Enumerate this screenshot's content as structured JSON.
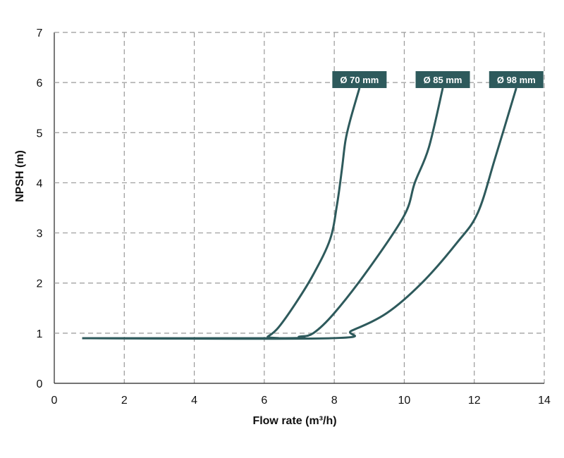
{
  "chart_data": {
    "type": "line",
    "xlabel": "Flow rate (m³/h)",
    "ylabel": "NPSH (m)",
    "xlim": [
      0,
      14
    ],
    "ylim": [
      0,
      7
    ],
    "xticks": [
      0,
      2,
      4,
      6,
      8,
      10,
      12,
      14
    ],
    "yticks": [
      0,
      1,
      2,
      3,
      4,
      5,
      6,
      7
    ],
    "grid": true,
    "grid_style": "dashed",
    "line_color": "#2e5a5c",
    "series": [
      {
        "name": "Ø 70 mm",
        "points": [
          [
            0.8,
            0.9
          ],
          [
            6.0,
            0.9
          ],
          [
            6.1,
            0.93
          ],
          [
            6.4,
            1.11
          ],
          [
            6.9,
            1.6
          ],
          [
            7.4,
            2.17
          ],
          [
            7.88,
            2.87
          ],
          [
            8.08,
            3.57
          ],
          [
            8.22,
            4.28
          ],
          [
            8.32,
            4.84
          ],
          [
            8.46,
            5.26
          ],
          [
            8.72,
            5.89
          ]
        ]
      },
      {
        "name": "Ø 85 mm",
        "points": [
          [
            0.8,
            0.9
          ],
          [
            6.6,
            0.9
          ],
          [
            7.0,
            0.93
          ],
          [
            7.4,
            1.0
          ],
          [
            8.0,
            1.4
          ],
          [
            9.0,
            2.3
          ],
          [
            10.0,
            3.35
          ],
          [
            10.3,
            4.0
          ],
          [
            10.7,
            4.7
          ],
          [
            11.1,
            5.89
          ]
        ]
      },
      {
        "name": "Ø 98 mm",
        "points": [
          [
            0.8,
            0.9
          ],
          [
            7.9,
            0.9
          ],
          [
            8.5,
            1.05
          ],
          [
            9.5,
            1.4
          ],
          [
            10.5,
            2.0
          ],
          [
            11.5,
            2.8
          ],
          [
            12.1,
            3.4
          ],
          [
            12.6,
            4.5
          ],
          [
            13.2,
            5.89
          ]
        ]
      }
    ]
  }
}
